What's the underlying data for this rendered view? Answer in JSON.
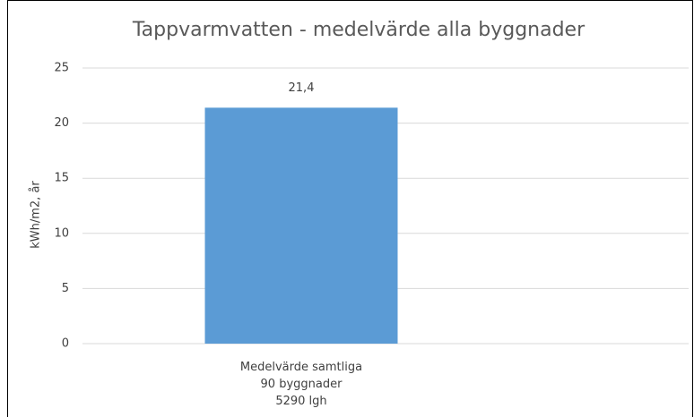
{
  "chart_data": {
    "type": "bar",
    "title": "Tappvarmvatten - medelvärde alla byggnader",
    "y_axis_label": "kWh/m2, år",
    "categories": [
      "Medelvärde samtliga\n90 byggnader\n5290 lgh"
    ],
    "values": [
      21.4
    ],
    "value_labels": [
      "21,4"
    ],
    "color": "#5b9bd5",
    "ylim": [
      0,
      25
    ],
    "yticks": [
      0,
      5,
      10,
      15,
      20,
      25
    ],
    "grid": true
  }
}
